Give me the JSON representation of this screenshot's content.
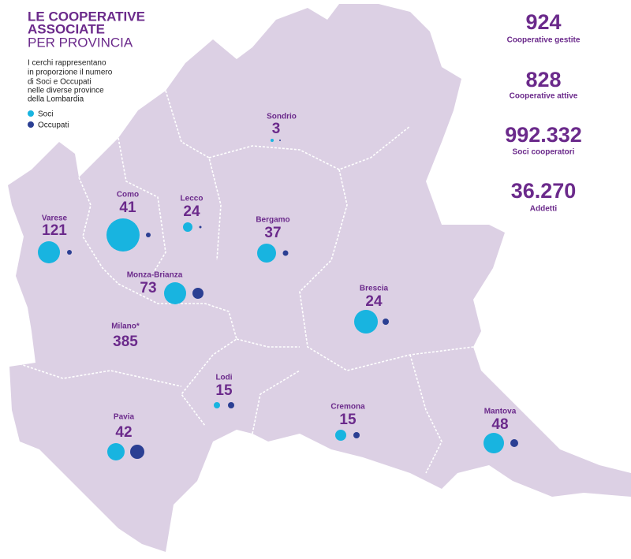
{
  "header": {
    "title_lines": [
      "LE COOPERATIVE",
      "ASSOCIATE"
    ],
    "subtitle": "PER PROVINCIA",
    "description": [
      "I cerchi rappresentano",
      "in proporzione il numero",
      "di Soci e Occupati",
      "nelle diverse province",
      "della Lombardia"
    ]
  },
  "legend": [
    "Soci",
    "Occupati"
  ],
  "stats": [
    {
      "value": "924",
      "label": "Cooperative gestite"
    },
    {
      "value": "828",
      "label": "Cooperative attive"
    },
    {
      "value": "992.332",
      "label": "Soci cooperatori"
    },
    {
      "value": "36.270",
      "label": "Addetti"
    }
  ],
  "provinces": [
    {
      "name": "Sondrio",
      "count": 3
    },
    {
      "name": "Como",
      "count": 41
    },
    {
      "name": "Lecco",
      "count": 24
    },
    {
      "name": "Varese",
      "count": 121
    },
    {
      "name": "Bergamo",
      "count": 37
    },
    {
      "name": "Monza-Brianza",
      "count": 73
    },
    {
      "name": "Brescia",
      "count": 24
    },
    {
      "name": "Milano*",
      "count": 385
    },
    {
      "name": "Lodi",
      "count": 15
    },
    {
      "name": "Cremona",
      "count": 15
    },
    {
      "name": "Mantova",
      "count": 48
    },
    {
      "name": "Pavia",
      "count": 42
    }
  ]
}
